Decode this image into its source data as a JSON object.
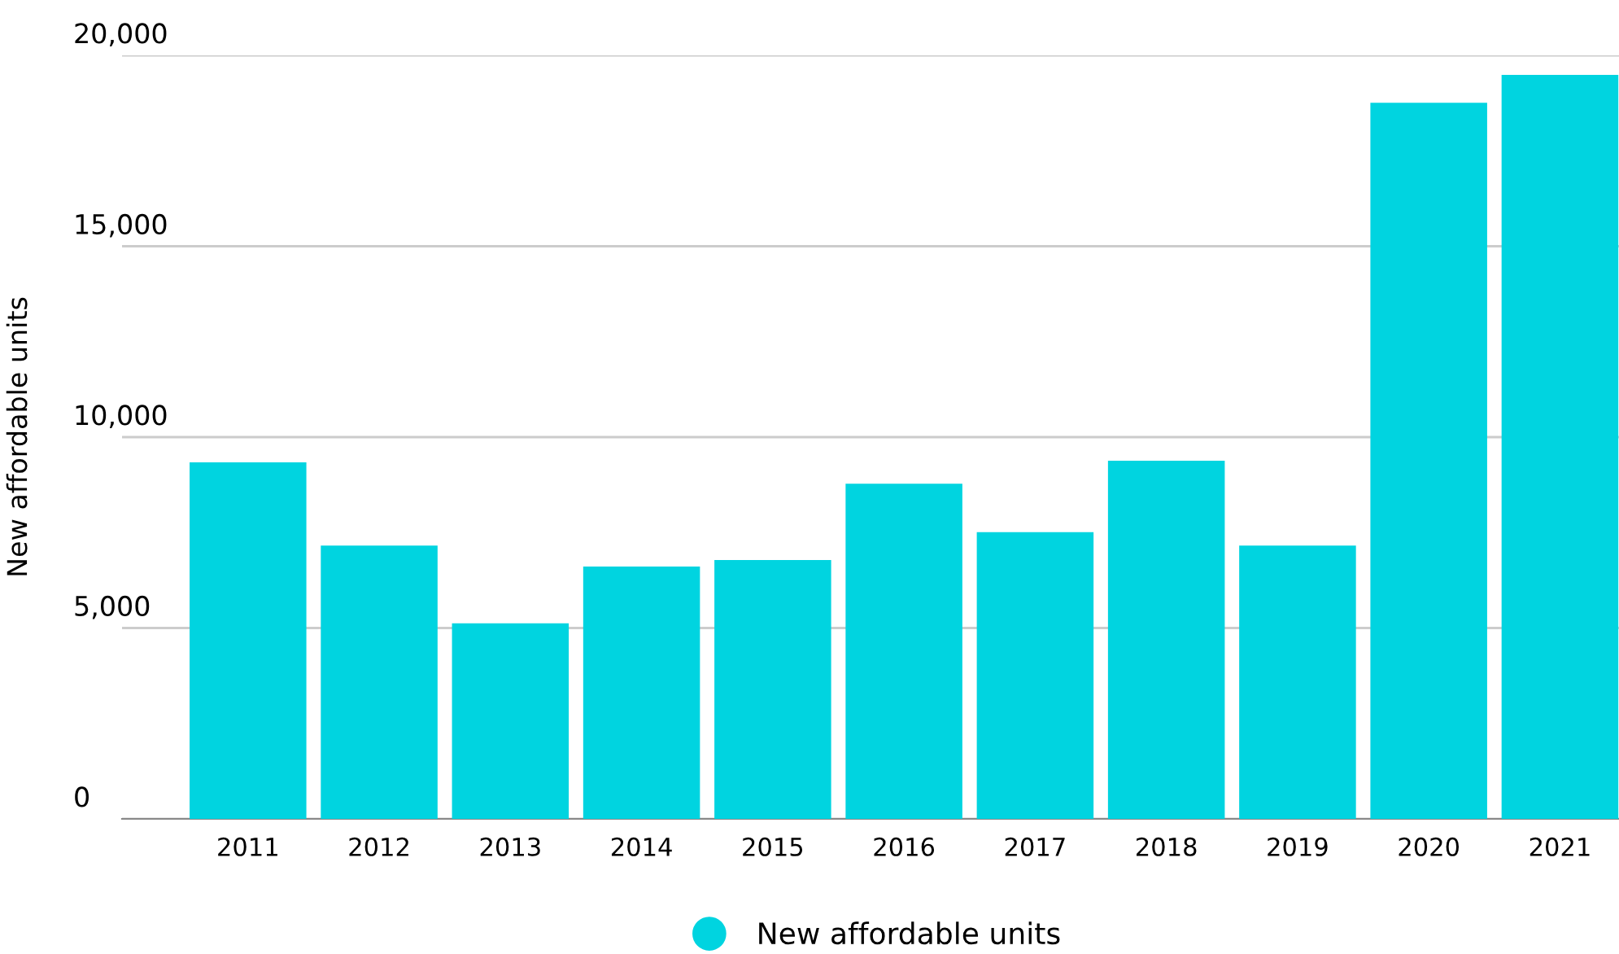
{
  "chart_data": {
    "type": "bar",
    "categories": [
      "2011",
      "2012",
      "2013",
      "2014",
      "2015",
      "2016",
      "2017",
      "2018",
      "2019",
      "2020",
      "2021"
    ],
    "series": [
      {
        "name": "New affordable units",
        "color": "#00d4e0",
        "values": [
          9340,
          7160,
          5120,
          6610,
          6780,
          8780,
          7510,
          9380,
          7160,
          18760,
          19490
        ]
      }
    ],
    "ylabel": "New affordable units",
    "ylim": [
      0,
      20000
    ],
    "yticks": [
      {
        "value": 0,
        "label": "0"
      },
      {
        "value": 5000,
        "label": "5,000"
      },
      {
        "value": 10000,
        "label": "10,000"
      },
      {
        "value": 15000,
        "label": "15,000"
      },
      {
        "value": 20000,
        "label": "20,000"
      }
    ],
    "grid": "y",
    "legend": "bottom"
  }
}
